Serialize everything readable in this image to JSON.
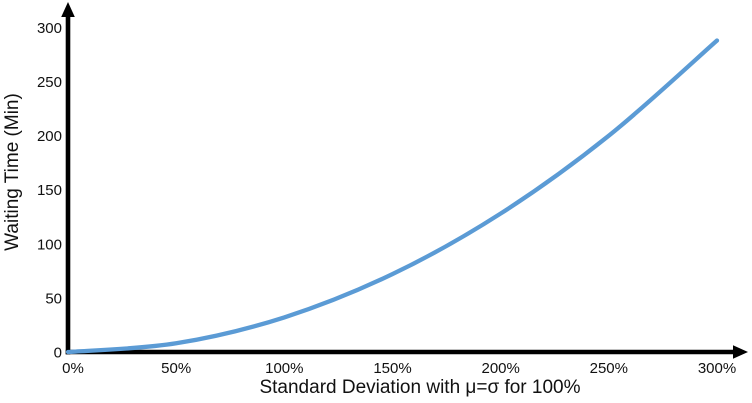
{
  "chart_data": {
    "type": "line",
    "title": "",
    "xlabel": "Standard Deviation with μ=σ for 100%",
    "ylabel": "Waiting Time (Min)",
    "x": [
      0,
      50,
      100,
      150,
      200,
      250,
      300
    ],
    "x_tick_labels": [
      "0%",
      "50%",
      "100%",
      "150%",
      "200%",
      "250%",
      "300%"
    ],
    "y_ticks": [
      0,
      50,
      100,
      150,
      200,
      250,
      300
    ],
    "y_tick_labels": [
      "0",
      "50",
      "100",
      "150",
      "200",
      "250",
      "300"
    ],
    "series": [
      {
        "name": "waiting-time",
        "values": [
          0,
          8,
          32,
          72,
          128,
          200,
          288
        ]
      }
    ],
    "xlim": [
      0,
      300
    ],
    "ylim": [
      0,
      300
    ],
    "grid": false,
    "legend": false,
    "smooth": true,
    "line_color": "#5B9BD5",
    "axis_color": "#000000",
    "text_color": "#111111",
    "background_color": "#FFFFFF"
  }
}
